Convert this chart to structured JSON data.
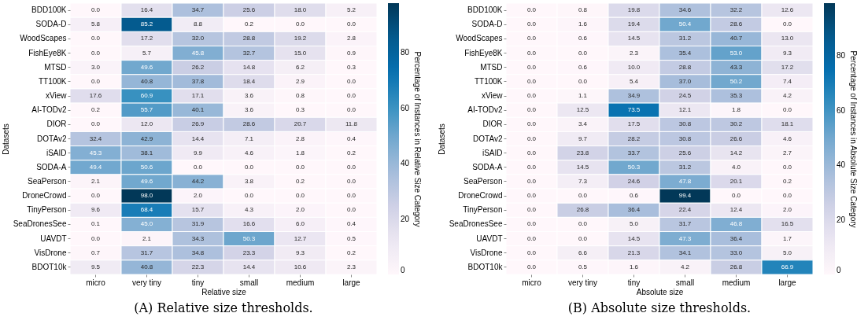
{
  "chart_data": [
    {
      "type": "heatmap",
      "xlabel": "Relative size",
      "ylabel": "Datasets",
      "clabel": "Percentage of Instances in Relative Size Category",
      "annotations": [
        "(A) Relative size thresholds."
      ],
      "data_labels": true,
      "clim": [
        0,
        98
      ],
      "cticks": [
        0,
        20,
        40,
        60,
        80
      ],
      "categories": [
        "micro",
        "very tiny",
        "tiny",
        "small",
        "medium",
        "large"
      ],
      "y_categories": [
        "BDD100K",
        "SODA-D",
        "WoodScapes",
        "FishEye8K",
        "MTSD",
        "TT100K",
        "xView",
        "AI-TODv2",
        "DIOR",
        "DOTAv2",
        "iSAID",
        "SODA-A",
        "SeaPerson",
        "DroneCrowd",
        "TinyPerson",
        "SeaDronesSee",
        "UAVDT",
        "VisDrone",
        "BDOT10k"
      ],
      "cells": [
        [
          0.0,
          16.4,
          34.7,
          25.6,
          18.0,
          5.2
        ],
        [
          5.8,
          85.2,
          8.8,
          0.2,
          0.0,
          0.0
        ],
        [
          0.0,
          17.2,
          32.0,
          28.8,
          19.2,
          2.8
        ],
        [
          0.0,
          5.7,
          45.8,
          32.7,
          15.0,
          0.9
        ],
        [
          3.0,
          49.6,
          26.2,
          14.8,
          6.2,
          0.3
        ],
        [
          0.0,
          40.8,
          37.8,
          18.4,
          2.9,
          0.0
        ],
        [
          17.6,
          60.9,
          17.1,
          3.6,
          0.8,
          0.0
        ],
        [
          0.2,
          55.7,
          40.1,
          3.6,
          0.3,
          0.0
        ],
        [
          0.0,
          12.0,
          26.9,
          28.6,
          20.7,
          11.8
        ],
        [
          32.4,
          42.9,
          14.4,
          7.1,
          2.8,
          0.4
        ],
        [
          45.3,
          38.1,
          9.9,
          4.6,
          1.8,
          0.2
        ],
        [
          49.4,
          50.6,
          0.0,
          0.0,
          0.0,
          0.0
        ],
        [
          2.1,
          49.6,
          44.2,
          3.8,
          0.2,
          0.0
        ],
        [
          0.0,
          98.0,
          2.0,
          0.0,
          0.0,
          0.0
        ],
        [
          9.6,
          68.4,
          15.7,
          4.3,
          2.0,
          0.0
        ],
        [
          0.1,
          45.0,
          31.9,
          16.6,
          6.0,
          0.4
        ],
        [
          0.0,
          2.1,
          34.3,
          50.3,
          12.7,
          0.5
        ],
        [
          0.7,
          31.7,
          34.8,
          23.3,
          9.3,
          0.2
        ],
        [
          9.5,
          40.8,
          22.3,
          14.4,
          10.6,
          2.3
        ]
      ],
      "cell_labels": [
        [
          "0.0",
          "16.4",
          "34.7",
          "25.6",
          "18.0",
          "5.2"
        ],
        [
          "5.8",
          "85.2",
          "8.8",
          "0.2",
          "0.0",
          "0.0"
        ],
        [
          "0.0",
          "17.2",
          "32.0",
          "28.8",
          "19.2",
          "2.8"
        ],
        [
          "0.0",
          "5.7",
          "45.8",
          "32.7",
          "15.0",
          "0.9"
        ],
        [
          "3.0",
          "49.6",
          "26.2",
          "14.8",
          "6.2",
          "0.3"
        ],
        [
          "0.0",
          "40.8",
          "37.8",
          "18.4",
          "2.9",
          "0.0"
        ],
        [
          "17.6",
          "60.9",
          "17.1",
          "3.6",
          "0.8",
          "0.0"
        ],
        [
          "0.2",
          "55.7",
          "40.1",
          "3.6",
          "0.3",
          "0.0"
        ],
        [
          "0.0",
          "12.0",
          "26.9",
          "28.6",
          "20.7",
          "11.8"
        ],
        [
          "32.4",
          "42.9",
          "14.4",
          "7.1",
          "2.8",
          "0.4"
        ],
        [
          "45.3",
          "38.1",
          "9.9",
          "4.6",
          "1.8",
          "0.2"
        ],
        [
          "49.4",
          "50.6",
          "0.0",
          "0.0",
          "0.0",
          "0.0"
        ],
        [
          "2.1",
          "49.6",
          "44.2",
          "3.8",
          "0.2",
          "0.0"
        ],
        [
          "0.0",
          "98.0",
          "2.0",
          "0.0",
          "0.0",
          "0.0"
        ],
        [
          "9.6",
          "68.4",
          "15.7",
          "4.3",
          "2.0",
          "0.0"
        ],
        [
          "0.1",
          "45.0",
          "31.9",
          "16.6",
          "6.0",
          "0.4"
        ],
        [
          "0.0",
          "2.1",
          "34.3",
          "50.3",
          "12.7",
          "0.5"
        ],
        [
          "0.7",
          "31.7",
          "34.8",
          "23.3",
          "9.3",
          "0.2"
        ],
        [
          "9.5",
          "40.8",
          "22.3",
          "14.4",
          "10.6",
          "2.3"
        ]
      ]
    },
    {
      "type": "heatmap",
      "xlabel": "Absolute size",
      "ylabel": "Datasets",
      "clabel": "Percentage of Instances in Absolute Size Category",
      "annotations": [
        "(B) Absolute size thresholds."
      ],
      "data_labels": true,
      "clim": [
        0,
        99.4
      ],
      "cticks": [
        0,
        20,
        40,
        60,
        80
      ],
      "categories": [
        "micro",
        "very tiny",
        "tiny",
        "small",
        "medium",
        "large"
      ],
      "y_categories": [
        "BDD100K",
        "SODA-D",
        "WoodScapes",
        "FishEye8K",
        "MTSD",
        "TT100K",
        "xView",
        "AI-TODv2",
        "DIOR",
        "DOTAv2",
        "iSAID",
        "SODA-A",
        "SeaPerson",
        "DroneCrowd",
        "TinyPerson",
        "SeaDronesSee",
        "UAVDT",
        "VisDrone",
        "BDOT10k"
      ],
      "cells": [
        [
          0.0,
          0.8,
          19.8,
          34.6,
          32.2,
          12.6
        ],
        [
          0.0,
          1.6,
          19.4,
          50.4,
          28.6,
          0.0
        ],
        [
          0.0,
          0.6,
          14.5,
          31.2,
          40.7,
          13.0
        ],
        [
          0.0,
          0.0,
          2.3,
          35.4,
          53.0,
          9.3
        ],
        [
          0.0,
          0.6,
          10.0,
          28.8,
          43.3,
          17.2
        ],
        [
          0.0,
          0.0,
          5.4,
          37.0,
          50.2,
          7.4
        ],
        [
          0.0,
          1.1,
          34.9,
          24.5,
          35.3,
          4.2
        ],
        [
          0.0,
          12.5,
          73.5,
          12.1,
          1.8,
          0.0
        ],
        [
          0.0,
          3.4,
          17.5,
          30.8,
          30.2,
          18.1
        ],
        [
          0.0,
          9.7,
          28.2,
          30.8,
          26.6,
          4.6
        ],
        [
          0.0,
          23.8,
          33.7,
          25.6,
          14.2,
          2.7
        ],
        [
          0.0,
          14.5,
          50.3,
          31.2,
          4.0,
          0.0
        ],
        [
          0.0,
          7.3,
          24.6,
          47.8,
          20.1,
          0.2
        ],
        [
          0.0,
          0.0,
          0.6,
          99.4,
          0.0,
          0.0
        ],
        [
          0.0,
          26.8,
          36.4,
          22.4,
          12.4,
          2.0
        ],
        [
          0.0,
          0.0,
          5.0,
          31.7,
          46.8,
          16.5
        ],
        [
          0.0,
          0.0,
          14.5,
          47.3,
          36.4,
          1.7
        ],
        [
          0.0,
          6.6,
          21.3,
          34.1,
          33.0,
          5.0
        ],
        [
          0.0,
          0.5,
          1.6,
          4.2,
          26.8,
          66.9
        ]
      ],
      "cell_labels": [
        [
          "0.0",
          "0.8",
          "19.8",
          "34.6",
          "32.2",
          "12.6"
        ],
        [
          "0.0",
          "1.6",
          "19.4",
          "50.4",
          "28.6",
          "0.0"
        ],
        [
          "0.0",
          "0.6",
          "14.5",
          "31.2",
          "40.7",
          "13.0"
        ],
        [
          "0.0",
          "0.0",
          "2.3",
          "35.4",
          "53.0",
          "9.3"
        ],
        [
          "0.0",
          "0.6",
          "10.0",
          "28.8",
          "43.3",
          "17.2"
        ],
        [
          "0.0",
          "0.0",
          "5.4",
          "37.0",
          "50.2",
          "7.4"
        ],
        [
          "0.0",
          "1.1",
          "34.9",
          "24.5",
          "35.3",
          "4.2"
        ],
        [
          "0.0",
          "12.5",
          "73.5",
          "12.1",
          "1.8",
          "0.0"
        ],
        [
          "0.0",
          "3.4",
          "17.5",
          "30.8",
          "30.2",
          "18.1"
        ],
        [
          "0.0",
          "9.7",
          "28.2",
          "30.8",
          "26.6",
          "4.6"
        ],
        [
          "0.0",
          "23.8",
          "33.7",
          "25.6",
          "14.2",
          "2.7"
        ],
        [
          "0.0",
          "14.5",
          "50.3",
          "31.2",
          "4.0",
          "0.0"
        ],
        [
          "0.0",
          "7.3",
          "24.6",
          "47.8",
          "20.1",
          "0.2"
        ],
        [
          "0.0",
          "0.0",
          "0.6",
          "99.4",
          "0.0",
          "0.0"
        ],
        [
          "0.0",
          "26.8",
          "36.4",
          "22.4",
          "12.4",
          "2.0"
        ],
        [
          "0.0",
          "0.0",
          "5.0",
          "31.7",
          "46.8",
          "16.5"
        ],
        [
          "0.0",
          "0.0",
          "14.5",
          "47.3",
          "36.4",
          "1.7"
        ],
        [
          "0.0",
          "6.6",
          "21.3",
          "34.1",
          "33.0",
          "5.0"
        ],
        [
          "0.0",
          "0.5",
          "1.6",
          "4.2",
          "26.8",
          "66.9"
        ]
      ]
    }
  ]
}
